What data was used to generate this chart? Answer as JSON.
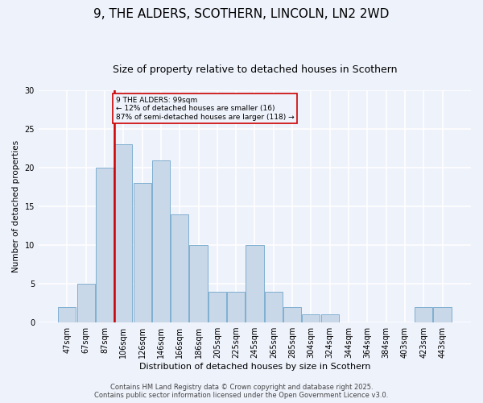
{
  "title": "9, THE ALDERS, SCOTHERN, LINCOLN, LN2 2WD",
  "subtitle": "Size of property relative to detached houses in Scothern",
  "xlabel": "Distribution of detached houses by size in Scothern",
  "ylabel": "Number of detached properties",
  "footer_line1": "Contains HM Land Registry data © Crown copyright and database right 2025.",
  "footer_line2": "Contains public sector information licensed under the Open Government Licence v3.0.",
  "bar_labels": [
    "47sqm",
    "67sqm",
    "87sqm",
    "106sqm",
    "126sqm",
    "146sqm",
    "166sqm",
    "186sqm",
    "205sqm",
    "225sqm",
    "245sqm",
    "265sqm",
    "285sqm",
    "304sqm",
    "324sqm",
    "344sqm",
    "364sqm",
    "384sqm",
    "403sqm",
    "423sqm",
    "443sqm"
  ],
  "bar_values": [
    2,
    5,
    20,
    23,
    18,
    21,
    14,
    10,
    4,
    4,
    10,
    4,
    2,
    1,
    1,
    0,
    0,
    0,
    0,
    2,
    2
  ],
  "bar_color": "#c8d8e8",
  "bar_edge_color": "#7fafd0",
  "background_color": "#eef2fb",
  "grid_color": "#ffffff",
  "vline_color": "#cc0000",
  "annotation_text": "9 THE ALDERS: 99sqm\n← 12% of detached houses are smaller (16)\n87% of semi-detached houses are larger (118) →",
  "annotation_box_color": "#cc0000",
  "ylim": [
    0,
    30
  ],
  "yticks": [
    0,
    5,
    10,
    15,
    20,
    25,
    30
  ],
  "title_fontsize": 11,
  "subtitle_fontsize": 9,
  "xlabel_fontsize": 8,
  "ylabel_fontsize": 7.5,
  "tick_fontsize": 7,
  "annotation_fontsize": 6.5,
  "footer_fontsize": 6
}
